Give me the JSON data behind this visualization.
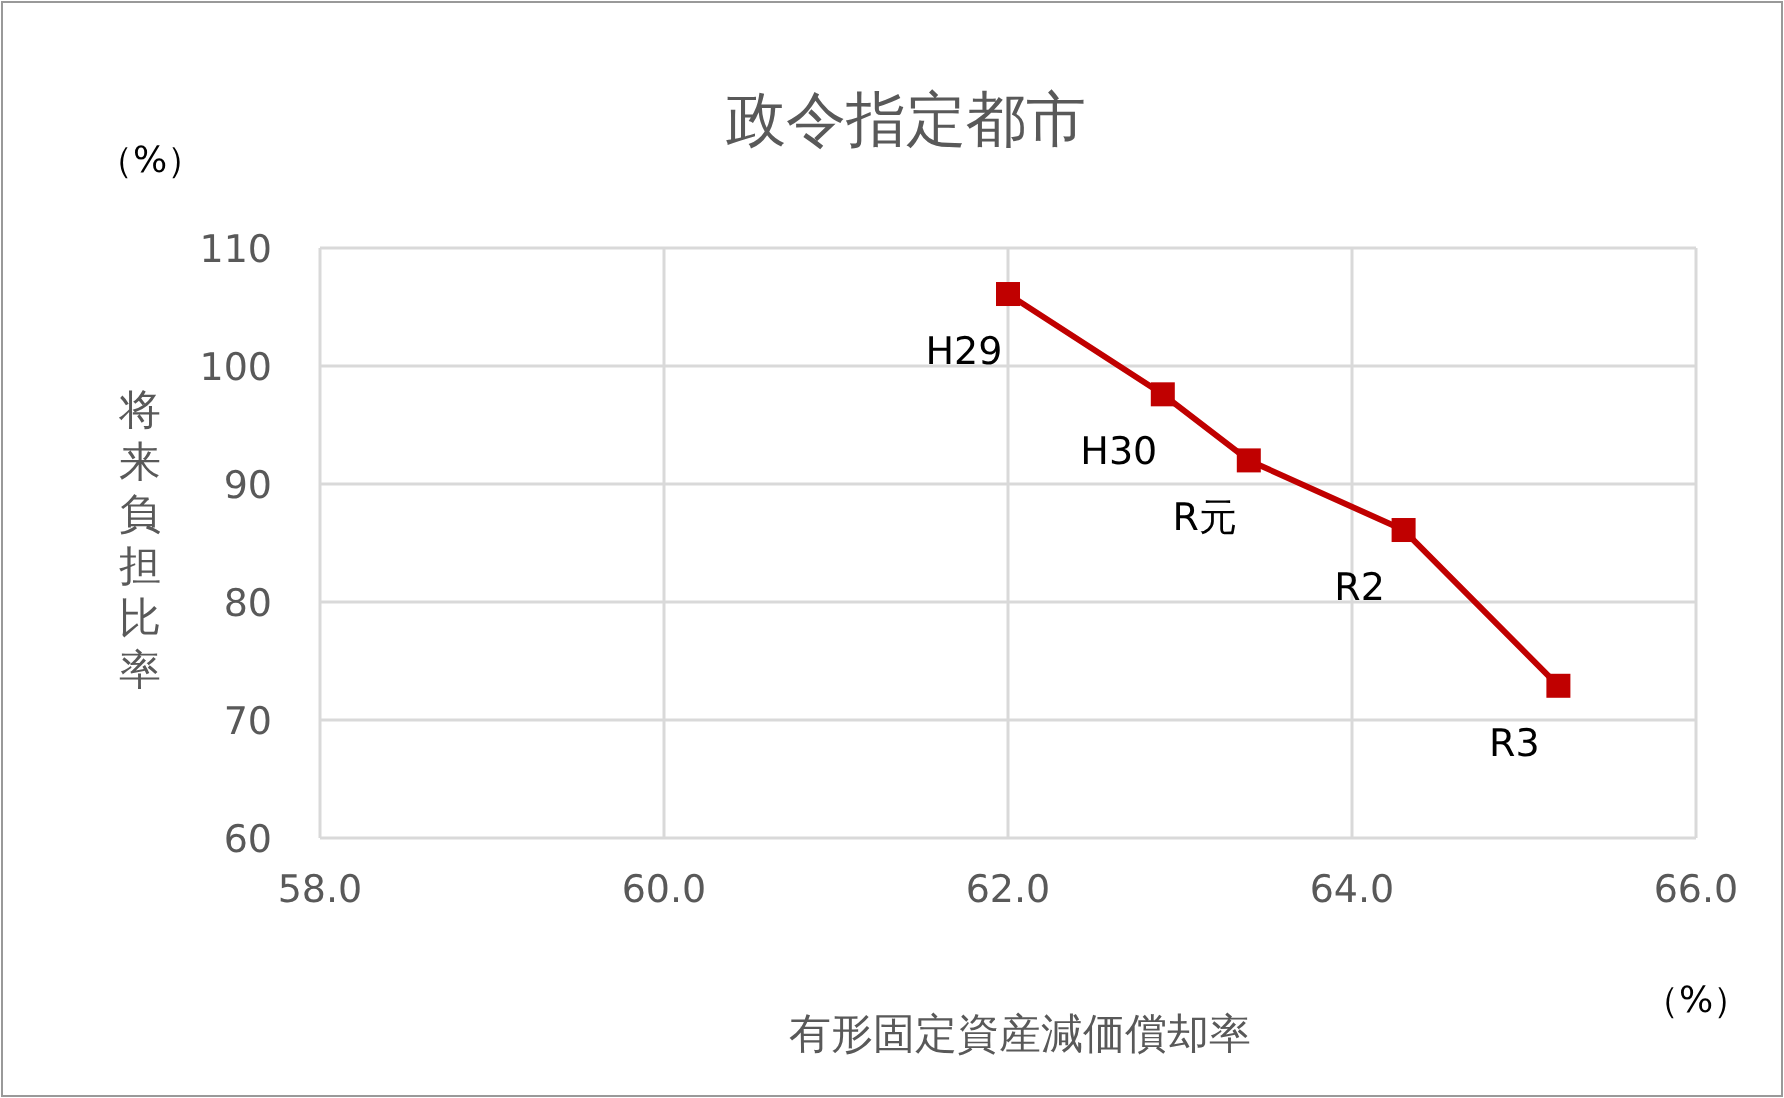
{
  "chart_data": {
    "type": "line",
    "title": "政令指定都市",
    "xlabel": "有形固定資産減価償却率",
    "ylabel": "将来負担比率",
    "x": [
      62.0,
      62.9,
      63.4,
      64.3,
      65.2
    ],
    "series": [
      {
        "color": "#c00000",
        "values": [
          106.1,
          97.6,
          92.0,
          86.1,
          72.9
        ]
      }
    ],
    "xlim": [
      58,
      66
    ],
    "xticks": [
      {
        "value": 58,
        "label": "58.0"
      },
      {
        "value": 60,
        "label": "60.0"
      },
      {
        "value": 62,
        "label": "62.0"
      },
      {
        "value": 64,
        "label": "64.0"
      },
      {
        "value": 66,
        "label": "66.0"
      }
    ],
    "ylim": [
      60,
      110
    ],
    "yticks": [
      60,
      70,
      80,
      90,
      100,
      110
    ],
    "grid": true,
    "marker": "square",
    "line_style": "solid",
    "annotations": [
      {
        "text": "H29",
        "x": 62.0,
        "y": 106.1
      },
      {
        "text": "H30",
        "x": 62.9,
        "y": 97.6
      },
      {
        "text": "R元",
        "x": 63.4,
        "y": 92.0
      },
      {
        "text": "R2",
        "x": 64.3,
        "y": 86.1
      },
      {
        "text": "R3",
        "x": 65.2,
        "y": 72.9
      },
      "（%）",
      "（%）"
    ]
  }
}
